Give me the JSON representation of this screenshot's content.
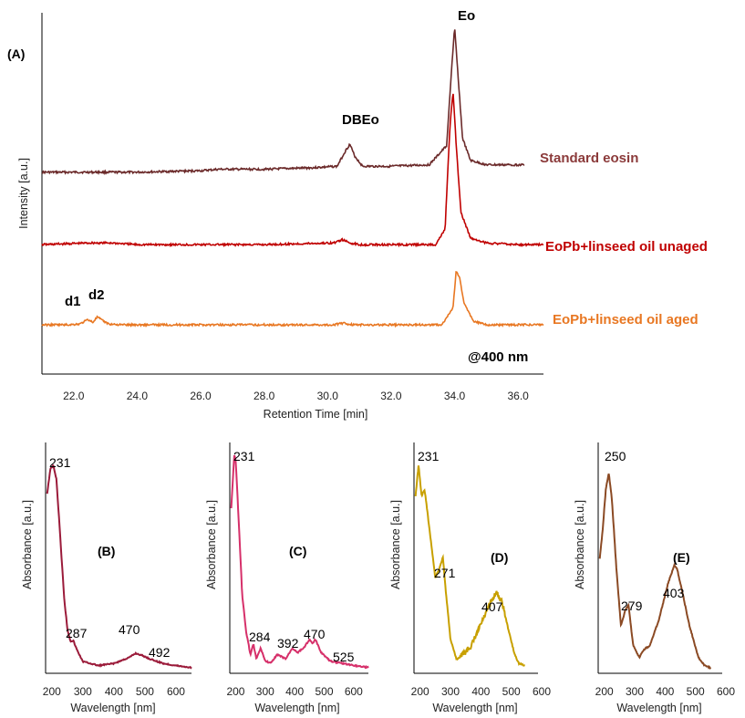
{
  "chart_data": [
    {
      "panel": "(A)",
      "type": "line",
      "xlabel": "Retention Time [min]",
      "ylabel": "Intensity [a.u.]",
      "xlim": [
        21,
        36.8
      ],
      "xticks": [
        "22.0",
        "24.0",
        "26.0",
        "28.0",
        "30.0",
        "32.0",
        "34.0",
        "36.0"
      ],
      "annotation": "@400 nm",
      "series": [
        {
          "name": "Standard eosin",
          "color": "#6b2a2a",
          "x": [
            21,
            22,
            24,
            26,
            26.6,
            28,
            29.5,
            30.3,
            30.55,
            30.7,
            30.85,
            31.1,
            32,
            33.2,
            33.75,
            33.9,
            34.0,
            34.1,
            34.25,
            34.5,
            35,
            36,
            36.2
          ],
          "y": [
            0.02,
            0.02,
            0.02,
            0.03,
            0.04,
            0.04,
            0.05,
            0.06,
            0.16,
            0.21,
            0.13,
            0.06,
            0.06,
            0.07,
            0.2,
            0.7,
            1.0,
            0.7,
            0.25,
            0.1,
            0.07,
            0.07,
            0.07
          ]
        },
        {
          "name": "EoPb+linseed oil unaged",
          "color": "#c00000",
          "x": [
            21,
            22.5,
            23.2,
            24,
            26,
            28,
            30.2,
            30.45,
            30.7,
            31,
            32,
            33.4,
            33.7,
            33.85,
            33.95,
            34.05,
            34.2,
            34.5,
            35,
            36,
            36.8
          ],
          "y": [
            0.01,
            0.02,
            0.02,
            0.01,
            0.01,
            0.01,
            0.02,
            0.04,
            0.02,
            0.01,
            0.01,
            0.01,
            0.1,
            0.7,
            0.92,
            0.6,
            0.2,
            0.05,
            0.02,
            0.01,
            0.01
          ],
          "y_end": 0.01
        },
        {
          "name": "EoPb+linseed oil aged",
          "color": "#e87722",
          "x": [
            21,
            21.8,
            22.2,
            22.45,
            22.6,
            22.75,
            22.85,
            23.1,
            23.5,
            24,
            26,
            28,
            30.2,
            30.5,
            30.8,
            31,
            32,
            33.6,
            33.95,
            34.05,
            34.15,
            34.3,
            34.6,
            35,
            36,
            36.8
          ],
          "y": [
            0.01,
            0.01,
            0.02,
            0.07,
            0.04,
            0.1,
            0.07,
            0.02,
            0.01,
            0.01,
            0.01,
            0.01,
            0.01,
            0.03,
            0.01,
            0.01,
            0.01,
            0.01,
            0.2,
            0.62,
            0.55,
            0.25,
            0.05,
            0.01,
            0.01,
            0.01
          ]
        }
      ],
      "peak_labels": [
        "DBEo",
        "Eo",
        "d1",
        "d2"
      ]
    },
    {
      "panel": "(B)",
      "type": "line",
      "xlabel": "Wavelength [nm]",
      "ylabel": "Absorbance [a.u.]",
      "xlim": [
        180,
        650
      ],
      "xticks": [
        "200",
        "300",
        "400",
        "500",
        "600"
      ],
      "color": "#9b1b3a",
      "x": [
        185,
        195,
        205,
        215,
        225,
        240,
        250,
        260,
        270,
        280,
        300,
        350,
        400,
        450,
        470,
        490,
        520,
        560,
        600,
        650
      ],
      "y": [
        0.86,
        0.98,
        1.0,
        0.93,
        0.7,
        0.35,
        0.2,
        0.14,
        0.14,
        0.1,
        0.04,
        0.02,
        0.03,
        0.06,
        0.08,
        0.07,
        0.05,
        0.03,
        0.02,
        0.01
      ],
      "peak_labels": [
        "231",
        "287",
        "470",
        "492"
      ]
    },
    {
      "panel": "(C)",
      "type": "line",
      "xlabel": "Wavelength [nm]",
      "ylabel": "Absorbance [a.u.]",
      "xlim": [
        180,
        650
      ],
      "xticks": [
        "200",
        "300",
        "400",
        "500",
        "600"
      ],
      "color": "#d6306a",
      "x": [
        185,
        195,
        200,
        210,
        222,
        235,
        250,
        260,
        270,
        285,
        300,
        320,
        340,
        370,
        392,
        410,
        430,
        450,
        460,
        470,
        490,
        520,
        560,
        600,
        650
      ],
      "y": [
        0.75,
        1.0,
        0.97,
        0.7,
        0.35,
        0.18,
        0.07,
        0.12,
        0.05,
        0.1,
        0.04,
        0.03,
        0.07,
        0.05,
        0.1,
        0.08,
        0.1,
        0.14,
        0.12,
        0.14,
        0.08,
        0.04,
        0.03,
        0.02,
        0.01
      ],
      "peak_labels": [
        "231",
        "284",
        "392",
        "470",
        "525"
      ]
    },
    {
      "panel": "(D)",
      "type": "line",
      "xlabel": "Wavelength [nm]",
      "ylabel": "Absorbance [a.u.]",
      "xlim": [
        180,
        600
      ],
      "xticks": [
        "200",
        "300",
        "400",
        "500",
        "600"
      ],
      "color": "#c8a000",
      "x": [
        185,
        195,
        205,
        215,
        230,
        250,
        265,
        275,
        285,
        300,
        320,
        345,
        370,
        400,
        430,
        450,
        470,
        490,
        510,
        525,
        545
      ],
      "y": [
        0.85,
        1.0,
        0.85,
        0.88,
        0.7,
        0.45,
        0.5,
        0.55,
        0.38,
        0.15,
        0.05,
        0.08,
        0.12,
        0.22,
        0.32,
        0.38,
        0.33,
        0.2,
        0.08,
        0.03,
        0.02
      ],
      "peak_labels": [
        "231",
        "271",
        "407"
      ]
    },
    {
      "panel": "(E)",
      "type": "line",
      "xlabel": "Wavelength [nm]",
      "ylabel": "Absorbance [a.u.]",
      "xlim": [
        180,
        600
      ],
      "xticks": [
        "200",
        "300",
        "400",
        "500",
        "600"
      ],
      "color": "#8b4a24",
      "x": [
        185,
        195,
        205,
        215,
        225,
        240,
        255,
        270,
        280,
        295,
        315,
        330,
        350,
        380,
        410,
        430,
        440,
        455,
        480,
        510,
        530,
        550
      ],
      "y": [
        0.55,
        0.7,
        0.9,
        0.98,
        0.85,
        0.5,
        0.22,
        0.3,
        0.32,
        0.12,
        0.06,
        0.1,
        0.12,
        0.25,
        0.43,
        0.52,
        0.5,
        0.4,
        0.22,
        0.06,
        0.02,
        0.01
      ],
      "peak_labels": [
        "250",
        "279",
        "403"
      ]
    }
  ]
}
